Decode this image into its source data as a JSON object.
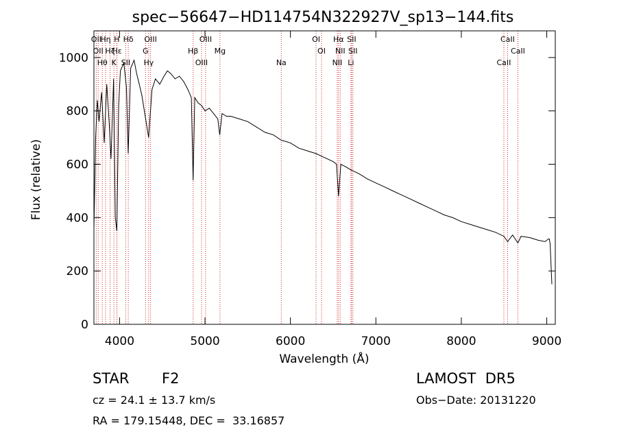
{
  "chart_data": {
    "type": "line",
    "title": "spec−56647−HD114754N322927V_sp13−144.fits",
    "xlabel": "Wavelength (Å)",
    "ylabel": "Flux (relative)",
    "xlim": [
      3700,
      9100
    ],
    "ylim": [
      0,
      1100
    ],
    "x_ticks": [
      4000,
      5000,
      6000,
      7000,
      8000,
      9000
    ],
    "y_ticks": [
      0,
      200,
      400,
      600,
      800,
      1000
    ],
    "grid": false,
    "series": [
      {
        "x": [
          3700,
          3720,
          3740,
          3760,
          3790,
          3820,
          3850,
          3880,
          3900,
          3930,
          3950,
          3968,
          3990,
          4010,
          4050,
          4080,
          4101,
          4130,
          4170,
          4200,
          4230,
          4260,
          4300,
          4340,
          4380,
          4420,
          4470,
          4520,
          4560,
          4600,
          4650,
          4700,
          4750,
          4800,
          4840,
          4861,
          4880,
          4920,
          4960,
          5000,
          5050,
          5100,
          5150,
          5172,
          5200,
          5250,
          5300,
          5400,
          5500,
          5600,
          5700,
          5800,
          5893,
          5950,
          6000,
          6100,
          6200,
          6300,
          6400,
          6500,
          6540,
          6563,
          6590,
          6650,
          6700,
          6800,
          6900,
          7000,
          7100,
          7200,
          7300,
          7400,
          7500,
          7600,
          7700,
          7800,
          7900,
          8000,
          8100,
          8200,
          8300,
          8400,
          8498,
          8542,
          8600,
          8662,
          8700,
          8800,
          8900,
          8980,
          9020,
          9030,
          9040,
          9060
        ],
        "y": [
          360,
          700,
          840,
          760,
          870,
          680,
          900,
          750,
          620,
          920,
          400,
          350,
          820,
          950,
          980,
          890,
          640,
          960,
          990,
          940,
          900,
          860,
          780,
          700,
          880,
          920,
          900,
          930,
          950,
          940,
          920,
          930,
          910,
          880,
          850,
          540,
          850,
          830,
          820,
          800,
          810,
          790,
          770,
          710,
          790,
          780,
          780,
          770,
          760,
          740,
          720,
          710,
          690,
          685,
          680,
          660,
          650,
          640,
          625,
          610,
          600,
          480,
          600,
          590,
          580,
          565,
          545,
          530,
          515,
          500,
          485,
          470,
          455,
          440,
          425,
          410,
          400,
          385,
          375,
          365,
          355,
          345,
          330,
          310,
          335,
          305,
          330,
          325,
          315,
          310,
          320,
          320,
          300,
          150
        ]
      }
    ],
    "lines": [
      {
        "wave": 3727,
        "label": "OII"
      },
      {
        "wave": 3750,
        "label": "OII"
      },
      {
        "wave": 3798,
        "label": "Hθ"
      },
      {
        "wave": 3836,
        "label": "Hη"
      },
      {
        "wave": 3889,
        "label": "Hζ"
      },
      {
        "wave": 3934,
        "label": "K"
      },
      {
        "wave": 3968,
        "label": "H"
      },
      {
        "wave": 3970,
        "label": "Hε"
      },
      {
        "wave": 4072,
        "label": "SII"
      },
      {
        "wave": 4102,
        "label": "Hδ"
      },
      {
        "wave": 4304,
        "label": "G"
      },
      {
        "wave": 4341,
        "label": "Hγ"
      },
      {
        "wave": 4363,
        "label": "OIII"
      },
      {
        "wave": 4861,
        "label": "Hβ"
      },
      {
        "wave": 4959,
        "label": "OIII"
      },
      {
        "wave": 5007,
        "label": "OIII"
      },
      {
        "wave": 5175,
        "label": "Mg"
      },
      {
        "wave": 5893,
        "label": "Na"
      },
      {
        "wave": 6300,
        "label": "OI"
      },
      {
        "wave": 6364,
        "label": "OI"
      },
      {
        "wave": 6548,
        "label": "NII"
      },
      {
        "wave": 6563,
        "label": "Hα"
      },
      {
        "wave": 6583,
        "label": "NII"
      },
      {
        "wave": 6708,
        "label": "Li"
      },
      {
        "wave": 6716,
        "label": "SII"
      },
      {
        "wave": 6731,
        "label": "SII"
      },
      {
        "wave": 8498,
        "label": "CaII"
      },
      {
        "wave": 8542,
        "label": "CaII"
      },
      {
        "wave": 8662,
        "label": "CaII"
      }
    ],
    "line_color": "#d02020"
  },
  "info": {
    "object_class": "STAR",
    "subclass": "F2",
    "survey": "LAMOST  DR5",
    "cz": "cz = 24.1 ± 13.7 km/s",
    "obs_date": "Obs−Date: 20131220",
    "coords": "RA = 179.15448, DEC =  33.16857"
  }
}
